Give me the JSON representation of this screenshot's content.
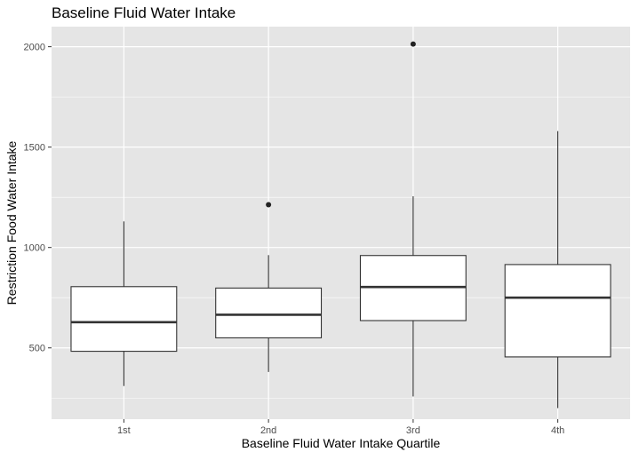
{
  "chart_data": {
    "type": "boxplot",
    "title": "Baseline Fluid Water Intake",
    "xlabel": "Baseline Fluid Water Intake Quartile",
    "ylabel": "Restriction Food Water Intake",
    "categories": [
      "1st",
      "2nd",
      "3rd",
      "4th"
    ],
    "ylim": [
      145,
      2100
    ],
    "yticks": [
      500,
      1000,
      1500,
      2000
    ],
    "yticks_minor": [
      250,
      750,
      1250,
      1750
    ],
    "grid": true,
    "boxes": [
      {
        "category": "1st",
        "whisker_low": 310,
        "q1": 483,
        "median": 628,
        "q3": 805,
        "whisker_high": 1130,
        "outliers": []
      },
      {
        "category": "2nd",
        "whisker_low": 380,
        "q1": 550,
        "median": 665,
        "q3": 798,
        "whisker_high": 962,
        "outliers": [
          1213
        ]
      },
      {
        "category": "3rd",
        "whisker_low": 258,
        "q1": 636,
        "median": 803,
        "q3": 960,
        "whisker_high": 1255,
        "outliers": [
          2013
        ]
      },
      {
        "category": "4th",
        "whisker_low": 200,
        "q1": 455,
        "median": 750,
        "q3": 915,
        "whisker_high": 1580,
        "outliers": []
      }
    ],
    "colors": {
      "panel": "#e5e5e5",
      "grid": "#ffffff",
      "box_fill": "#ffffff",
      "box_line": "#333333",
      "outlier": "#222222"
    }
  }
}
